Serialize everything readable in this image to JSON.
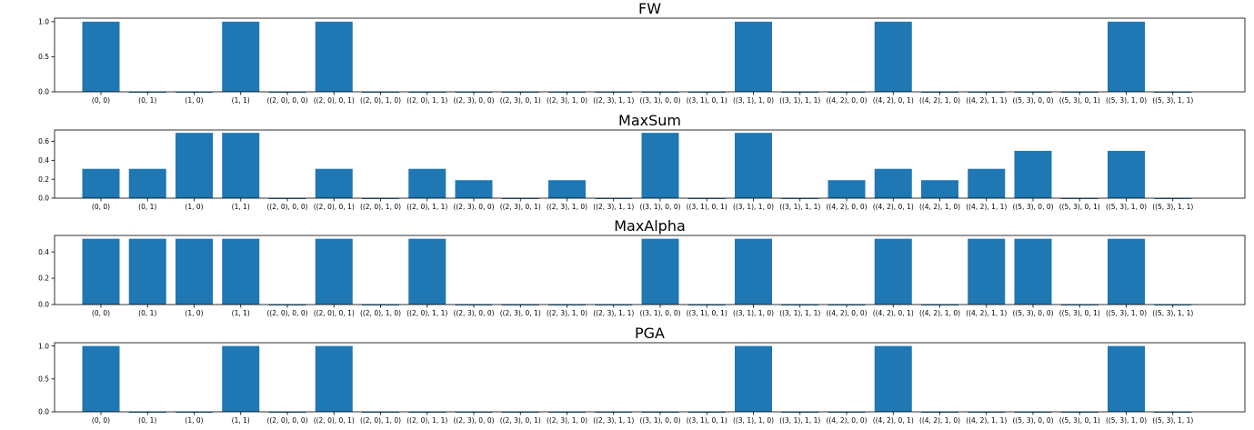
{
  "chart_data": [
    {
      "type": "bar",
      "title": "FW",
      "xlabel": "",
      "ylabel": "",
      "ylim": [
        0,
        1.05
      ],
      "yticks": [
        "0.0",
        "0.5",
        "1.0"
      ],
      "categories": [
        "(0, 0)",
        "(0, 1)",
        "(1, 0)",
        "(1, 1)",
        "((2, 0), 0, 0)",
        "((2, 0), 0, 1)",
        "((2, 0), 1, 0)",
        "((2, 0), 1, 1)",
        "((2, 3), 0, 0)",
        "((2, 3), 0, 1)",
        "((2, 3), 1, 0)",
        "((2, 3), 1, 1)",
        "((3, 1), 0, 0)",
        "((3, 1), 0, 1)",
        "((3, 1), 1, 0)",
        "((3, 1), 1, 1)",
        "((4, 2), 0, 0)",
        "((4, 2), 0, 1)",
        "((4, 2), 1, 0)",
        "((4, 2), 1, 1)",
        "((5, 3), 0, 0)",
        "((5, 3), 0, 1)",
        "((5, 3), 1, 0)",
        "((5, 3), 1, 1)"
      ],
      "values": [
        1.0,
        0.0,
        0.0,
        1.0,
        0.0,
        1.0,
        0.0,
        0.0,
        0.0,
        0.0,
        0.0,
        0.0,
        0.0,
        0.0,
        1.0,
        0.0,
        0.0,
        1.0,
        0.0,
        0.0,
        0.0,
        0.0,
        1.0,
        0.0
      ],
      "color": "#1f77b4"
    },
    {
      "type": "bar",
      "title": "MaxSum",
      "xlabel": "",
      "ylabel": "",
      "ylim": [
        0,
        0.72
      ],
      "yticks": [
        "0.0",
        "0.2",
        "0.4",
        "0.6"
      ],
      "categories": [
        "(0, 0)",
        "(0, 1)",
        "(1, 0)",
        "(1, 1)",
        "((2, 0), 0, 0)",
        "((2, 0), 0, 1)",
        "((2, 0), 1, 0)",
        "((2, 0), 1, 1)",
        "((2, 3), 0, 0)",
        "((2, 3), 0, 1)",
        "((2, 3), 1, 0)",
        "((2, 3), 1, 1)",
        "((3, 1), 0, 0)",
        "((3, 1), 0, 1)",
        "((3, 1), 1, 0)",
        "((3, 1), 1, 1)",
        "((4, 2), 0, 0)",
        "((4, 2), 0, 1)",
        "((4, 2), 1, 0)",
        "((4, 2), 1, 1)",
        "((5, 3), 0, 0)",
        "((5, 3), 0, 1)",
        "((5, 3), 1, 0)",
        "((5, 3), 1, 1)"
      ],
      "values": [
        0.31,
        0.31,
        0.69,
        0.69,
        0.0,
        0.31,
        0.0,
        0.31,
        0.19,
        0.0,
        0.19,
        0.0,
        0.69,
        0.0,
        0.69,
        0.0,
        0.19,
        0.31,
        0.19,
        0.31,
        0.5,
        0.0,
        0.5,
        0.0
      ],
      "color": "#1f77b4"
    },
    {
      "type": "bar",
      "title": "MaxAlpha",
      "xlabel": "",
      "ylabel": "",
      "ylim": [
        0,
        0.525
      ],
      "yticks": [
        "0.0",
        "0.2",
        "0.4"
      ],
      "categories": [
        "(0, 0)",
        "(0, 1)",
        "(1, 0)",
        "(1, 1)",
        "((2, 0), 0, 0)",
        "((2, 0), 0, 1)",
        "((2, 0), 1, 0)",
        "((2, 0), 1, 1)",
        "((2, 3), 0, 0)",
        "((2, 3), 0, 1)",
        "((2, 3), 1, 0)",
        "((2, 3), 1, 1)",
        "((3, 1), 0, 0)",
        "((3, 1), 0, 1)",
        "((3, 1), 1, 0)",
        "((3, 1), 1, 1)",
        "((4, 2), 0, 0)",
        "((4, 2), 0, 1)",
        "((4, 2), 1, 0)",
        "((4, 2), 1, 1)",
        "((5, 3), 0, 0)",
        "((5, 3), 0, 1)",
        "((5, 3), 1, 0)",
        "((5, 3), 1, 1)"
      ],
      "values": [
        0.5,
        0.5,
        0.5,
        0.5,
        0.0,
        0.5,
        0.0,
        0.5,
        0.0,
        0.0,
        0.0,
        0.0,
        0.5,
        0.0,
        0.5,
        0.0,
        0.0,
        0.5,
        0.0,
        0.5,
        0.5,
        0.0,
        0.5,
        0.0
      ],
      "color": "#1f77b4"
    },
    {
      "type": "bar",
      "title": "PGA",
      "xlabel": "",
      "ylabel": "",
      "ylim": [
        0,
        1.05
      ],
      "yticks": [
        "0.0",
        "0.5",
        "1.0"
      ],
      "categories": [
        "(0, 0)",
        "(0, 1)",
        "(1, 0)",
        "(1, 1)",
        "((2, 0), 0, 0)",
        "((2, 0), 0, 1)",
        "((2, 0), 1, 0)",
        "((2, 0), 1, 1)",
        "((2, 3), 0, 0)",
        "((2, 3), 0, 1)",
        "((2, 3), 1, 0)",
        "((2, 3), 1, 1)",
        "((3, 1), 0, 0)",
        "((3, 1), 0, 1)",
        "((3, 1), 1, 0)",
        "((3, 1), 1, 1)",
        "((4, 2), 0, 0)",
        "((4, 2), 0, 1)",
        "((4, 2), 1, 0)",
        "((4, 2), 1, 1)",
        "((5, 3), 0, 0)",
        "((5, 3), 0, 1)",
        "((5, 3), 1, 0)",
        "((5, 3), 1, 1)"
      ],
      "values": [
        1.0,
        0.0,
        0.0,
        1.0,
        0.0,
        1.0,
        0.0,
        0.0,
        0.0,
        0.0,
        0.0,
        0.0,
        0.0,
        0.0,
        1.0,
        0.0,
        0.0,
        1.0,
        0.0,
        0.0,
        0.0,
        0.0,
        1.0,
        0.0
      ],
      "color": "#1f77b4"
    }
  ]
}
